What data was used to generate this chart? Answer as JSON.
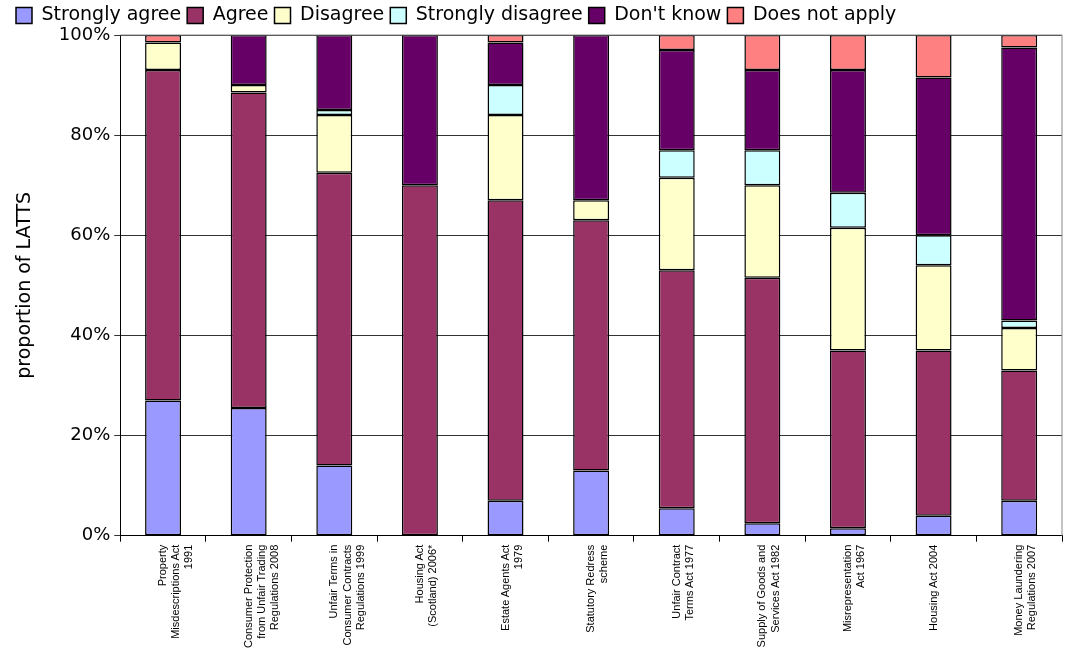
{
  "chart_data": {
    "type": "bar",
    "stacked": true,
    "ylabel": "proportion of LATTS",
    "categories": [
      "Property Misdescriptions Act 1991",
      "Consumer Protection from Unfair Trading Regulations 2008",
      "Unfair Terms in Consumer Contracts Regulations 1999",
      "Housing Act (Scotland) 2006*",
      "Estate Agents Act 1979",
      "Statutory Redress scheme",
      "Unfair Contract Terms Act 1977",
      "Supply of Goods and Services Act 1982",
      "Misrepresentation Act 1967",
      "Housing Act 2004",
      "Money Laundering Regulations 2007"
    ],
    "series": [
      {
        "name": "Strongly agree",
        "color": "#9999ff",
        "values": [
          27,
          25.5,
          14,
          0,
          7,
          13,
          5.5,
          2.5,
          1.5,
          4,
          7
        ]
      },
      {
        "name": "Agree",
        "color": "#993366",
        "values": [
          66,
          63,
          58.5,
          70,
          60,
          50,
          47.5,
          49,
          35.5,
          33,
          26
        ]
      },
      {
        "name": "Disagree",
        "color": "#ffffcc",
        "values": [
          5.5,
          1.5,
          11.5,
          0,
          17,
          4,
          18.5,
          18.5,
          24.5,
          17,
          8.5
        ]
      },
      {
        "name": "Strongly disagree",
        "color": "#ccffff",
        "values": [
          0,
          0,
          1,
          0,
          6,
          0,
          5.5,
          7,
          7,
          6,
          1.5
        ]
      },
      {
        "name": "Don't know",
        "color": "#660066",
        "values": [
          0,
          10,
          15,
          30,
          8.5,
          33,
          20,
          16,
          24.5,
          31.5,
          54.5
        ]
      },
      {
        "name": "Does not apply",
        "color": "#ff8080",
        "values": [
          1.5,
          0,
          0,
          0,
          1.5,
          0,
          3,
          7,
          7,
          8.5,
          2.5
        ]
      }
    ],
    "ylim": [
      0,
      100
    ],
    "yticks": [
      {
        "value": 0,
        "label": "0%"
      },
      {
        "value": 20,
        "label": "20%"
      },
      {
        "value": 40,
        "label": "40%"
      },
      {
        "value": 60,
        "label": "60%"
      },
      {
        "value": 80,
        "label": "80%"
      },
      {
        "value": 100,
        "label": "100%"
      }
    ],
    "grid": "y",
    "legend": "top"
  }
}
